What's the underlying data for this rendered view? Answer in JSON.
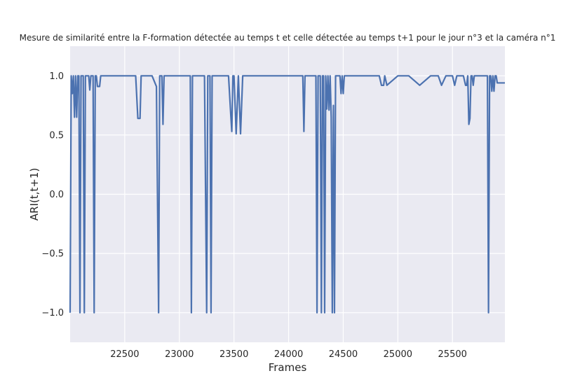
{
  "chart_data": {
    "type": "line",
    "title": "Mesure de similarité entre la F-formation détectée au temps t et celle détectée au temps t+1 pour le jour n°3 et la caméra n°1",
    "xlabel": "Frames",
    "ylabel": "ARI(t,t+1)",
    "xlim": [
      22000,
      25980
    ],
    "ylim": [
      -1.25,
      1.25
    ],
    "xticks": [
      22500,
      23000,
      23500,
      24000,
      24500,
      25000,
      25500
    ],
    "xtick_labels": [
      "22500",
      "23000",
      "23500",
      "24000",
      "24500",
      "25000",
      "25500"
    ],
    "yticks": [
      1.0,
      0.5,
      0.0,
      -0.5,
      -1.0
    ],
    "ytick_labels": [
      "1.0",
      "0.5",
      "0.0",
      "−0.5",
      "−1.0"
    ],
    "grid": true,
    "style": "seaborn-darkgrid",
    "colors": {
      "background": "#eaeaf2",
      "grid": "#ffffff",
      "line": "#4c72b0",
      "text": "#262626"
    },
    "series": [
      {
        "x": [
          22000,
          22010,
          22020,
          22030,
          22040,
          22050,
          22060,
          22070,
          22080,
          22090,
          22100,
          22110,
          22120,
          22130,
          22140,
          22150,
          22160,
          22170,
          22180,
          22190,
          22200,
          22210,
          22220,
          22230,
          22240,
          22250,
          22260,
          22270,
          22280,
          22290,
          22300,
          22310,
          22320,
          22330,
          22340,
          22350,
          22360,
          22370,
          22380,
          22390,
          22400,
          22500,
          22600,
          22620,
          22630,
          22640,
          22650,
          22660,
          22700,
          22750,
          22790,
          22810,
          22820,
          22830,
          22840,
          22850,
          22860,
          22870,
          22880,
          22890,
          22900,
          23000,
          23090,
          23100,
          23110,
          23120,
          23130,
          23200,
          23230,
          23250,
          23260,
          23270,
          23280,
          23290,
          23300,
          23310,
          23320,
          23330,
          23400,
          23450,
          23470,
          23480,
          23490,
          23500,
          23520,
          23540,
          23560,
          23580,
          23600,
          23610,
          23630,
          23700,
          23800,
          23900,
          24000,
          24100,
          24130,
          24140,
          24150,
          24160,
          24170,
          24200,
          24240,
          24250,
          24260,
          24270,
          24280,
          24290,
          24300,
          24310,
          24320,
          24330,
          24340,
          24350,
          24360,
          24370,
          24380,
          24390,
          24400,
          24410,
          24420,
          24430,
          24440,
          24450,
          24460,
          24470,
          24480,
          24490,
          24500,
          24510,
          24520,
          24530,
          24540,
          24550,
          24560,
          24570,
          24580,
          24590,
          24600,
          24610,
          24620,
          24630,
          24640,
          24650,
          24660,
          24670,
          24680,
          24690,
          24700,
          24750,
          24800,
          24820,
          24830,
          24850,
          24870,
          24880,
          24900,
          25000,
          25050,
          25100,
          25200,
          25300,
          25340,
          25350,
          25370,
          25400,
          25440,
          25450,
          25500,
          25520,
          25540,
          25560,
          25600,
          25620,
          25630,
          25640,
          25650,
          25660,
          25670,
          25680,
          25690,
          25700,
          25750,
          25800,
          25810,
          25820,
          25830,
          25840,
          25850,
          25860,
          25870,
          25880,
          25890,
          25900,
          25910,
          25920,
          25930,
          25940,
          25950,
          25960,
          25980
        ],
        "y": [
          -1.0,
          1.0,
          0.85,
          1.0,
          0.65,
          1.0,
          0.65,
          1.0,
          1.0,
          -1.0,
          1.0,
          1.0,
          1.0,
          -1.0,
          1.0,
          1.0,
          1.0,
          1.0,
          0.88,
          1.0,
          1.0,
          1.0,
          -1.0,
          1.0,
          1.0,
          0.91,
          0.91,
          0.91,
          1.0,
          1.0,
          1.0,
          1.0,
          1.0,
          1.0,
          1.0,
          1.0,
          1.0,
          1.0,
          1.0,
          1.0,
          1.0,
          1.0,
          1.0,
          0.64,
          0.64,
          0.64,
          1.0,
          1.0,
          1.0,
          1.0,
          0.91,
          -1.0,
          1.0,
          1.0,
          1.0,
          0.59,
          1.0,
          1.0,
          1.0,
          1.0,
          1.0,
          1.0,
          1.0,
          1.0,
          -1.0,
          1.0,
          1.0,
          1.0,
          1.0,
          -1.0,
          1.0,
          1.0,
          1.0,
          -1.0,
          1.0,
          1.0,
          1.0,
          1.0,
          1.0,
          1.0,
          0.68,
          0.53,
          1.0,
          1.0,
          0.51,
          1.0,
          0.51,
          1.0,
          1.0,
          1.0,
          1.0,
          1.0,
          1.0,
          1.0,
          1.0,
          1.0,
          1.0,
          0.53,
          1.0,
          1.0,
          1.0,
          1.0,
          1.0,
          1.0,
          -1.0,
          1.0,
          1.0,
          1.0,
          -1.0,
          1.0,
          1.0,
          -1.0,
          1.0,
          0.72,
          1.0,
          0.71,
          1.0,
          0.65,
          -1.0,
          0.75,
          -1.0,
          1.0,
          1.0,
          1.0,
          1.0,
          1.0,
          0.85,
          1.0,
          0.85,
          1.0,
          1.0,
          1.0,
          1.0,
          1.0,
          1.0,
          1.0,
          1.0,
          1.0,
          1.0,
          1.0,
          1.0,
          1.0,
          1.0,
          1.0,
          1.0,
          1.0,
          1.0,
          1.0,
          1.0,
          1.0,
          1.0,
          1.0,
          1.0,
          0.92,
          0.92,
          1.0,
          0.92,
          1.0,
          1.0,
          1.0,
          0.92,
          1.0,
          1.0,
          1.0,
          1.0,
          0.92,
          1.0,
          1.0,
          1.0,
          0.92,
          1.0,
          1.0,
          1.0,
          0.92,
          0.92,
          1.0,
          0.59,
          0.64,
          1.0,
          1.0,
          0.92,
          1.0,
          1.0,
          1.0,
          1.0,
          1.0,
          -1.0,
          1.0,
          1.0,
          0.87,
          1.0,
          0.87,
          1.0,
          1.0,
          0.94,
          0.94,
          0.94,
          0.94,
          0.94,
          0.94,
          0.94
        ]
      }
    ]
  }
}
